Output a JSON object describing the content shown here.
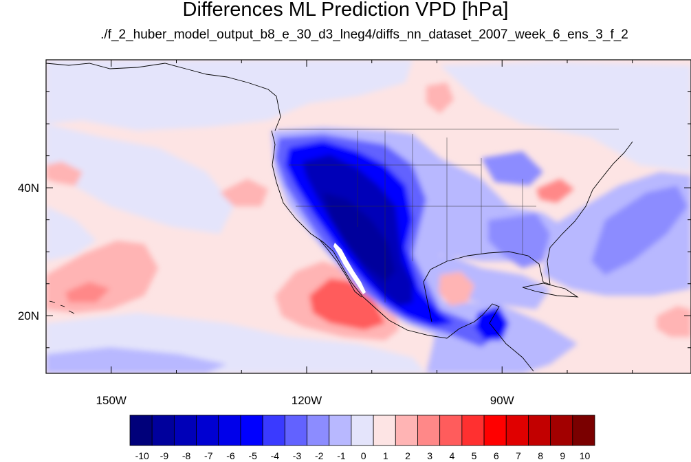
{
  "title": "Differences ML Prediction VPD [hPa]",
  "subtitle": "./f_2_huber_model_output_b8_e_30_d3_lneg4/diffs_nn_dataset_2007_week_6_ens_3_f_2",
  "map": {
    "lon_range": [
      -160,
      -61
    ],
    "lat_range": [
      11,
      60
    ],
    "lon_ticks": [
      {
        "value": -150,
        "label": "150W"
      },
      {
        "value": -120,
        "label": "120W"
      },
      {
        "value": -90,
        "label": "90W"
      }
    ],
    "lat_ticks": [
      {
        "value": 40,
        "label": "40N"
      },
      {
        "value": 20,
        "label": "20N"
      }
    ],
    "background_value": -1.5
  },
  "colorbar": {
    "labels": [
      "-10",
      "-9",
      "-8",
      "-7",
      "-6",
      "-5",
      "-4",
      "-3",
      "-2",
      "-1",
      "0",
      "1",
      "2",
      "3",
      "4",
      "5",
      "6",
      "7",
      "8",
      "9",
      "10"
    ],
    "colors": [
      "#00007a",
      "#00009c",
      "#0000b8",
      "#0000d2",
      "#0000ea",
      "#0000ff",
      "#3a3aff",
      "#6262ff",
      "#8c8cff",
      "#b8b8ff",
      "#e4e4fb",
      "#fde4e4",
      "#ffb4b4",
      "#ff8888",
      "#ff5c5c",
      "#ff3030",
      "#ff0000",
      "#e00000",
      "#c20000",
      "#a20000",
      "#7a0000"
    ]
  }
}
